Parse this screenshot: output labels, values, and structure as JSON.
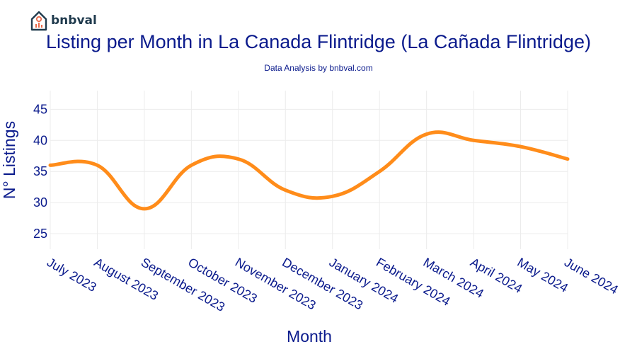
{
  "brand": {
    "name": "bnbval"
  },
  "chart_data": {
    "type": "line",
    "title": "Listing per Month in La Canada Flintridge (La Cañada Flintridge)",
    "subtitle": "Data Analysis by bnbval.com",
    "xlabel": "Month",
    "ylabel": "N° Listings",
    "categories": [
      "July 2023",
      "August 2023",
      "September 2023",
      "October 2023",
      "November 2023",
      "December 2023",
      "January 2024",
      "February 2024",
      "March 2024",
      "April 2024",
      "May 2024",
      "June 2024"
    ],
    "series": [
      {
        "name": "Listings",
        "values": [
          36,
          36,
          29,
          36,
          37,
          32,
          31,
          35,
          41,
          40,
          39,
          37
        ],
        "color": "#ff8c1a"
      }
    ],
    "yticks": [
      25,
      30,
      35,
      40,
      45
    ],
    "ylim": [
      22.5,
      48
    ],
    "grid": true,
    "colors": {
      "text": "#0a1a8c",
      "grid": "#ececec",
      "line": "#ff8c1a"
    }
  }
}
